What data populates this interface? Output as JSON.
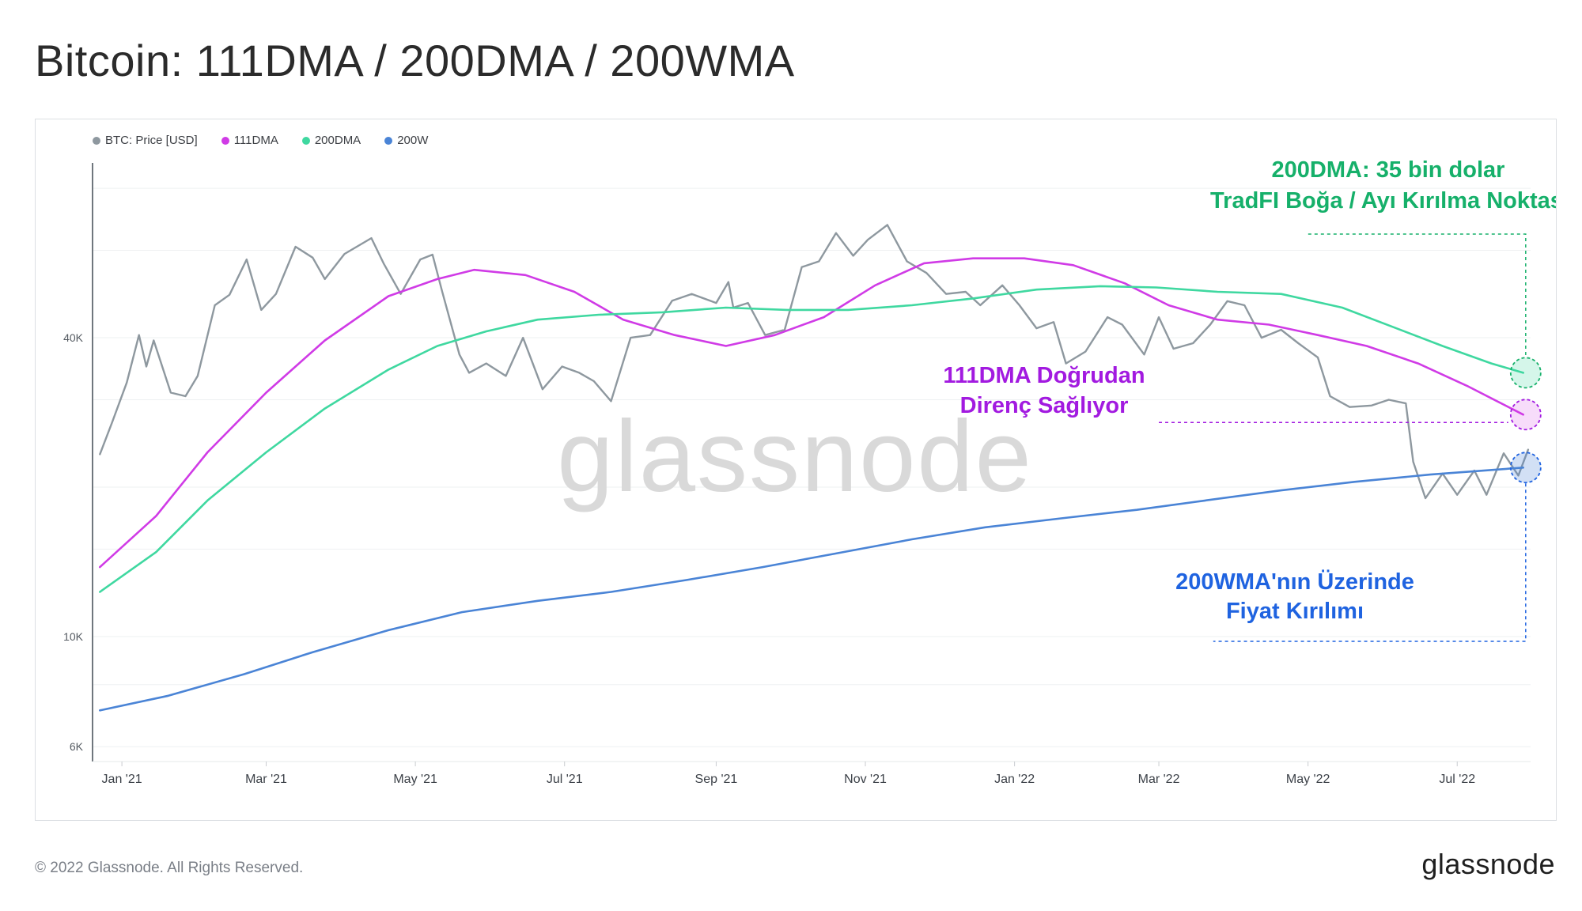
{
  "title": "Bitcoin: 111DMA / 200DMA / 200WMA",
  "footer": "© 2022 Glassnode. All Rights Reserved.",
  "brand": "glassnode",
  "watermark": "glassnode",
  "colors": {
    "price": "#8e989f",
    "dma111": "#d03be6",
    "dma200": "#3fd8a0",
    "wma200": "#4a84d6",
    "annotation_green": "#16b06a",
    "annotation_purple": "#a21ae0",
    "annotation_blue": "#1f63e0"
  },
  "legend": [
    {
      "label": "BTC: Price [USD]",
      "color": "#8e989f"
    },
    {
      "label": "111DMA",
      "color": "#d03be6"
    },
    {
      "label": "200DMA",
      "color": "#3fd8a0"
    },
    {
      "label": "200W",
      "color": "#4a84d6"
    }
  ],
  "annotations": {
    "green_line1": "200DMA: 35 bin dolar",
    "green_line2": "TradFI Boğa / Ayı Kırılma Noktası",
    "purple_line1": "111DMA Doğrudan",
    "purple_line2": "Direnç Sağlıyor",
    "blue_line1": "200WMA'nın Üzerinde",
    "blue_line2": "Fiyat Kırılımı"
  },
  "chart_data": {
    "type": "line",
    "y_scale": "log",
    "ylim": [
      5600,
      90000
    ],
    "x_range": [
      "2020-12-20",
      "2022-07-31"
    ],
    "grid": true,
    "legend_position": "top-left",
    "x_ticks": [
      {
        "date": "2021-01-01",
        "label": "Jan '21"
      },
      {
        "date": "2021-03-01",
        "label": "Mar '21"
      },
      {
        "date": "2021-05-01",
        "label": "May '21"
      },
      {
        "date": "2021-07-01",
        "label": "Jul '21"
      },
      {
        "date": "2021-09-01",
        "label": "Sep '21"
      },
      {
        "date": "2021-11-01",
        "label": "Nov '21"
      },
      {
        "date": "2022-01-01",
        "label": "Jan '22"
      },
      {
        "date": "2022-03-01",
        "label": "Mar '22"
      },
      {
        "date": "2022-05-01",
        "label": "May '22"
      },
      {
        "date": "2022-07-01",
        "label": "Jul '22"
      }
    ],
    "y_ticks": [
      {
        "value": 6000,
        "label": "6K"
      },
      {
        "value": 10000,
        "label": "10K"
      },
      {
        "value": 40000,
        "label": "40K"
      }
    ],
    "series": [
      {
        "name": "BTC: Price [USD]",
        "color": "#8e989f",
        "points": [
          [
            "2020-12-23",
            23300
          ],
          [
            "2020-12-28",
            27000
          ],
          [
            "2021-01-03",
            32500
          ],
          [
            "2021-01-08",
            40500
          ],
          [
            "2021-01-11",
            35000
          ],
          [
            "2021-01-14",
            39500
          ],
          [
            "2021-01-21",
            31000
          ],
          [
            "2021-01-27",
            30500
          ],
          [
            "2021-02-01",
            33500
          ],
          [
            "2021-02-08",
            46500
          ],
          [
            "2021-02-14",
            48800
          ],
          [
            "2021-02-21",
            57500
          ],
          [
            "2021-02-27",
            45500
          ],
          [
            "2021-03-05",
            49000
          ],
          [
            "2021-03-13",
            61000
          ],
          [
            "2021-03-20",
            58000
          ],
          [
            "2021-03-25",
            52500
          ],
          [
            "2021-04-02",
            59000
          ],
          [
            "2021-04-13",
            63500
          ],
          [
            "2021-04-18",
            56500
          ],
          [
            "2021-04-25",
            49000
          ],
          [
            "2021-05-03",
            57500
          ],
          [
            "2021-05-08",
            58800
          ],
          [
            "2021-05-12",
            49500
          ],
          [
            "2021-05-19",
            37000
          ],
          [
            "2021-05-23",
            34000
          ],
          [
            "2021-05-30",
            35500
          ],
          [
            "2021-06-07",
            33500
          ],
          [
            "2021-06-14",
            40000
          ],
          [
            "2021-06-22",
            31500
          ],
          [
            "2021-06-30",
            35000
          ],
          [
            "2021-07-07",
            34000
          ],
          [
            "2021-07-13",
            32700
          ],
          [
            "2021-07-20",
            29800
          ],
          [
            "2021-07-28",
            40000
          ],
          [
            "2021-08-05",
            40500
          ],
          [
            "2021-08-14",
            47500
          ],
          [
            "2021-08-22",
            49000
          ],
          [
            "2021-09-01",
            47000
          ],
          [
            "2021-09-06",
            51800
          ],
          [
            "2021-09-08",
            46000
          ],
          [
            "2021-09-14",
            47000
          ],
          [
            "2021-09-21",
            40500
          ],
          [
            "2021-09-29",
            41500
          ],
          [
            "2021-10-06",
            55500
          ],
          [
            "2021-10-13",
            57000
          ],
          [
            "2021-10-20",
            65000
          ],
          [
            "2021-10-27",
            58500
          ],
          [
            "2021-11-02",
            63000
          ],
          [
            "2021-11-10",
            67500
          ],
          [
            "2021-11-18",
            57000
          ],
          [
            "2021-11-26",
            54000
          ],
          [
            "2021-12-04",
            49000
          ],
          [
            "2021-12-12",
            49500
          ],
          [
            "2021-12-18",
            46500
          ],
          [
            "2021-12-27",
            51000
          ],
          [
            "2022-01-03",
            46500
          ],
          [
            "2022-01-10",
            41800
          ],
          [
            "2022-01-17",
            43000
          ],
          [
            "2022-01-22",
            35500
          ],
          [
            "2022-01-30",
            37500
          ],
          [
            "2022-02-08",
            44000
          ],
          [
            "2022-02-14",
            42500
          ],
          [
            "2022-02-23",
            37000
          ],
          [
            "2022-03-01",
            44000
          ],
          [
            "2022-03-07",
            38000
          ],
          [
            "2022-03-15",
            39000
          ],
          [
            "2022-03-22",
            42500
          ],
          [
            "2022-03-29",
            47400
          ],
          [
            "2022-04-05",
            46500
          ],
          [
            "2022-04-12",
            40000
          ],
          [
            "2022-04-20",
            41500
          ],
          [
            "2022-04-27",
            39000
          ],
          [
            "2022-05-05",
            36500
          ],
          [
            "2022-05-10",
            30500
          ],
          [
            "2022-05-18",
            29000
          ],
          [
            "2022-05-27",
            29200
          ],
          [
            "2022-06-03",
            30000
          ],
          [
            "2022-06-10",
            29500
          ],
          [
            "2022-06-13",
            22500
          ],
          [
            "2022-06-18",
            19000
          ],
          [
            "2022-06-25",
            21300
          ],
          [
            "2022-07-01",
            19300
          ],
          [
            "2022-07-08",
            21600
          ],
          [
            "2022-07-13",
            19300
          ],
          [
            "2022-07-20",
            23400
          ],
          [
            "2022-07-26",
            21100
          ],
          [
            "2022-07-30",
            23800
          ]
        ]
      },
      {
        "name": "111DMA",
        "color": "#d03be6",
        "points": [
          [
            "2020-12-23",
            13800
          ],
          [
            "2021-01-15",
            17500
          ],
          [
            "2021-02-05",
            23500
          ],
          [
            "2021-03-01",
            31000
          ],
          [
            "2021-03-25",
            39500
          ],
          [
            "2021-04-20",
            48500
          ],
          [
            "2021-05-10",
            52500
          ],
          [
            "2021-05-25",
            54800
          ],
          [
            "2021-06-15",
            53500
          ],
          [
            "2021-07-05",
            49500
          ],
          [
            "2021-07-25",
            43500
          ],
          [
            "2021-08-15",
            40500
          ],
          [
            "2021-09-05",
            38500
          ],
          [
            "2021-09-25",
            40500
          ],
          [
            "2021-10-15",
            44000
          ],
          [
            "2021-11-05",
            51000
          ],
          [
            "2021-11-25",
            56500
          ],
          [
            "2021-12-15",
            57800
          ],
          [
            "2022-01-05",
            57800
          ],
          [
            "2022-01-25",
            56000
          ],
          [
            "2022-02-15",
            51500
          ],
          [
            "2022-03-05",
            46500
          ],
          [
            "2022-03-25",
            43500
          ],
          [
            "2022-04-15",
            42500
          ],
          [
            "2022-05-05",
            40500
          ],
          [
            "2022-05-25",
            38500
          ],
          [
            "2022-06-15",
            35500
          ],
          [
            "2022-07-05",
            32000
          ],
          [
            "2022-07-28",
            28000
          ]
        ]
      },
      {
        "name": "200DMA",
        "color": "#3fd8a0",
        "points": [
          [
            "2020-12-23",
            12300
          ],
          [
            "2021-01-15",
            14800
          ],
          [
            "2021-02-05",
            18800
          ],
          [
            "2021-03-01",
            23500
          ],
          [
            "2021-03-25",
            28800
          ],
          [
            "2021-04-20",
            34500
          ],
          [
            "2021-05-10",
            38500
          ],
          [
            "2021-05-30",
            41200
          ],
          [
            "2021-06-20",
            43500
          ],
          [
            "2021-07-15",
            44500
          ],
          [
            "2021-08-10",
            45000
          ],
          [
            "2021-09-05",
            46000
          ],
          [
            "2021-09-30",
            45500
          ],
          [
            "2021-10-25",
            45500
          ],
          [
            "2021-11-20",
            46500
          ],
          [
            "2021-12-15",
            48000
          ],
          [
            "2022-01-10",
            50000
          ],
          [
            "2022-02-05",
            50800
          ],
          [
            "2022-02-28",
            50500
          ],
          [
            "2022-03-25",
            49500
          ],
          [
            "2022-04-20",
            49000
          ],
          [
            "2022-05-15",
            46000
          ],
          [
            "2022-06-05",
            42000
          ],
          [
            "2022-06-25",
            38500
          ],
          [
            "2022-07-15",
            35500
          ],
          [
            "2022-07-28",
            34000
          ]
        ]
      },
      {
        "name": "200W",
        "color": "#4a84d6",
        "points": [
          [
            "2020-12-23",
            7100
          ],
          [
            "2021-01-20",
            7600
          ],
          [
            "2021-02-20",
            8400
          ],
          [
            "2021-03-20",
            9300
          ],
          [
            "2021-04-20",
            10300
          ],
          [
            "2021-05-20",
            11200
          ],
          [
            "2021-06-20",
            11800
          ],
          [
            "2021-07-20",
            12300
          ],
          [
            "2021-08-20",
            13000
          ],
          [
            "2021-09-20",
            13800
          ],
          [
            "2021-10-20",
            14700
          ],
          [
            "2021-11-20",
            15700
          ],
          [
            "2021-12-20",
            16600
          ],
          [
            "2022-01-20",
            17300
          ],
          [
            "2022-02-20",
            18000
          ],
          [
            "2022-03-20",
            18800
          ],
          [
            "2022-04-20",
            19700
          ],
          [
            "2022-05-20",
            20500
          ],
          [
            "2022-06-20",
            21200
          ],
          [
            "2022-07-28",
            21900
          ]
        ]
      }
    ]
  }
}
